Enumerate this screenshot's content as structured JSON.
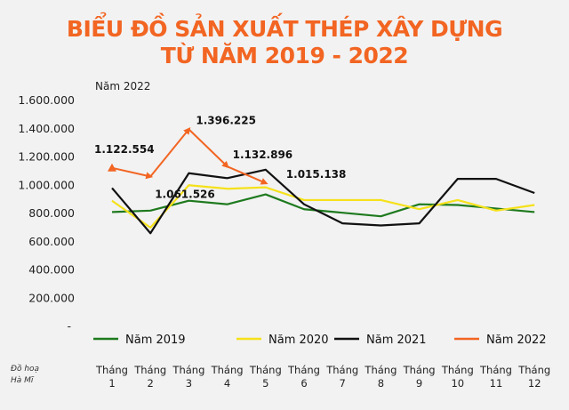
{
  "title_line1": "BIỂU ĐỒ SẢN XUẤT THÉP XÂY DỰNG",
  "title_line2": "TỪ NĂM 2019 - 2022",
  "credit_line1": "Đồ hoạ",
  "credit_line2": "Hà Mĩ",
  "colors": {
    "title": "#f26522",
    "y2019": "#1e7a1e",
    "y2020": "#f5e11a",
    "y2021": "#111111",
    "y2022": "#f26522"
  },
  "chart_data": {
    "type": "line",
    "title": "BIỂU ĐỒ SẢN XUẤT THÉP XÂY DỰNG TỪ NĂM 2019 - 2022",
    "annotation_top": "Năm 2022",
    "categories": [
      [
        "Tháng",
        "1"
      ],
      [
        "Tháng",
        "2"
      ],
      [
        "Tháng",
        "3"
      ],
      [
        "Tháng",
        "4"
      ],
      [
        "Tháng",
        "5"
      ],
      [
        "Tháng",
        "6"
      ],
      [
        "Tháng",
        "7"
      ],
      [
        "Tháng",
        "8"
      ],
      [
        "Tháng",
        "9"
      ],
      [
        "Tháng",
        "10"
      ],
      [
        "Tháng",
        "11"
      ],
      [
        "Tháng",
        "12"
      ]
    ],
    "ylim": [
      0,
      1600000
    ],
    "yticks": [
      {
        "value": 0,
        "label": "-"
      },
      {
        "value": 200000,
        "label": "200.000"
      },
      {
        "value": 400000,
        "label": "400.000"
      },
      {
        "value": 600000,
        "label": "600.000"
      },
      {
        "value": 800000,
        "label": "800.000"
      },
      {
        "value": 1000000,
        "label": "1.000.000"
      },
      {
        "value": 1200000,
        "label": "1.200.000"
      },
      {
        "value": 1400000,
        "label": "1.400.000"
      },
      {
        "value": 1600000,
        "label": "1.600.000"
      }
    ],
    "legend_position": "bottom",
    "grid": false,
    "series": [
      {
        "name": "Năm 2019",
        "color": "#1e7a1e",
        "values": [
          810000,
          820000,
          890000,
          865000,
          935000,
          830000,
          805000,
          780000,
          865000,
          860000,
          835000,
          810000
        ]
      },
      {
        "name": "Năm 2020",
        "color": "#f5e11a",
        "values": [
          890000,
          700000,
          1000000,
          975000,
          985000,
          895000,
          895000,
          895000,
          830000,
          895000,
          820000,
          860000
        ]
      },
      {
        "name": "Năm 2021",
        "color": "#111111",
        "values": [
          980000,
          660000,
          1085000,
          1050000,
          1110000,
          865000,
          730000,
          715000,
          730000,
          1045000,
          1045000,
          945000
        ]
      },
      {
        "name": "Năm 2022",
        "color": "#f26522",
        "arrows": true,
        "values": [
          1122554,
          1061526,
          1396225,
          1132896,
          1015138,
          null,
          null,
          null,
          null,
          null,
          null,
          null
        ],
        "labels": [
          "1.122.554",
          "1.061.526",
          "1.396.225",
          "1.132.896",
          "1.015.138"
        ]
      }
    ]
  }
}
